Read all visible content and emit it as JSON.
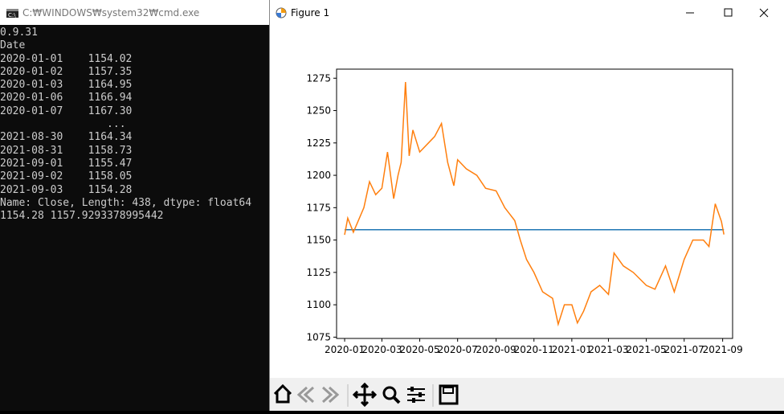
{
  "cmd_window": {
    "title": "C:₩WINDOWS₩system32₩cmd.exe",
    "lines": [
      "0.9.31",
      "Date",
      "2020-01-01    1154.02",
      "2020-01-02    1157.35",
      "2020-01-03    1164.95",
      "2020-01-06    1166.94",
      "2020-01-07    1167.30",
      "                 ...",
      "2021-08-30    1164.34",
      "2021-08-31    1158.73",
      "2021-09-01    1155.47",
      "2021-09-02    1158.05",
      "2021-09-03    1154.28",
      "Name: Close, Length: 438, dtype: float64",
      "1154.28 1157.9293378995442"
    ]
  },
  "figure_window": {
    "title": "Figure 1"
  },
  "chart_data": {
    "type": "line",
    "xlim": [
      "2019-12-19",
      "2021-09-17"
    ],
    "xticks": [
      {
        "value": "2020-01-01",
        "label": "2020-01"
      },
      {
        "value": "2020-03-01",
        "label": "2020-03"
      },
      {
        "value": "2020-05-01",
        "label": "2020-05"
      },
      {
        "value": "2020-07-01",
        "label": "2020-07"
      },
      {
        "value": "2020-09-01",
        "label": "2020-09"
      },
      {
        "value": "2020-11-01",
        "label": "2020-11"
      },
      {
        "value": "2021-01-01",
        "label": "2021-01"
      },
      {
        "value": "2021-03-01",
        "label": "2021-03"
      },
      {
        "value": "2021-05-01",
        "label": "2021-05"
      },
      {
        "value": "2021-07-01",
        "label": "2021-07"
      },
      {
        "value": "2021-09-01",
        "label": "2021-09"
      }
    ],
    "ylim": [
      1074,
      1282
    ],
    "yticks": [
      1075,
      1100,
      1125,
      1150,
      1175,
      1200,
      1225,
      1250,
      1275
    ],
    "series": [
      {
        "color": "#1f77b4",
        "x": [
          "2020-01-01",
          "2021-09-03"
        ],
        "values": [
          1157.9293378995442,
          1157.9293378995442
        ]
      },
      {
        "color": "#ff7f0e",
        "x": [
          "2020-01-01",
          "2020-01-06",
          "2020-01-15",
          "2020-02-01",
          "2020-02-10",
          "2020-02-20",
          "2020-03-01",
          "2020-03-10",
          "2020-03-20",
          "2020-03-27",
          "2020-04-01",
          "2020-04-08",
          "2020-04-14",
          "2020-04-20",
          "2020-05-01",
          "2020-05-15",
          "2020-05-25",
          "2020-06-05",
          "2020-06-15",
          "2020-06-25",
          "2020-07-01",
          "2020-07-15",
          "2020-08-01",
          "2020-08-15",
          "2020-09-01",
          "2020-09-15",
          "2020-10-01",
          "2020-10-10",
          "2020-10-20",
          "2020-11-01",
          "2020-11-15",
          "2020-12-01",
          "2020-12-10",
          "2020-12-20",
          "2021-01-01",
          "2021-01-10",
          "2021-01-20",
          "2021-02-01",
          "2021-02-15",
          "2021-03-01",
          "2021-03-10",
          "2021-03-25",
          "2021-04-10",
          "2021-05-01",
          "2021-05-15",
          "2021-06-01",
          "2021-06-15",
          "2021-07-01",
          "2021-07-15",
          "2021-08-01",
          "2021-08-10",
          "2021-08-20",
          "2021-08-30",
          "2021-09-03"
        ],
        "values": [
          1154.02,
          1166.94,
          1156,
          1175,
          1195,
          1185,
          1190,
          1218,
          1182,
          1200,
          1210,
          1272,
          1215,
          1235,
          1218,
          1225,
          1230,
          1240,
          1210,
          1192,
          1212,
          1205,
          1200,
          1190,
          1188,
          1175,
          1165,
          1150,
          1135,
          1125,
          1110,
          1105,
          1085,
          1100,
          1100,
          1086,
          1095,
          1110,
          1115,
          1108,
          1140,
          1130,
          1125,
          1115,
          1112,
          1130,
          1110,
          1135,
          1150,
          1150,
          1145,
          1178,
          1164.34,
          1154.28
        ]
      }
    ]
  }
}
